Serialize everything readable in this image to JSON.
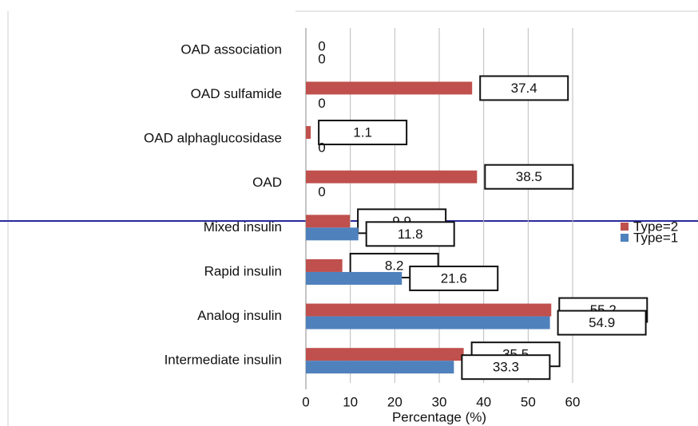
{
  "chart_data": {
    "type": "bar",
    "orientation": "horizontal",
    "xlabel": "Percentage (%)",
    "categories": [
      "OAD association",
      "OAD sulfamide",
      "OAD alphaglucosidase",
      "OAD",
      "Mixed insulin",
      "Rapid insulin",
      "Analog insulin",
      "Intermediate insulin"
    ],
    "series": [
      {
        "name": "Type=2",
        "color": "#c0504d",
        "values": [
          0,
          37.4,
          1.1,
          38.5,
          9.9,
          8.2,
          55.2,
          35.5
        ]
      },
      {
        "name": "Type=1",
        "color": "#4f81bd",
        "values": [
          0,
          0,
          0,
          0,
          11.8,
          21.6,
          54.9,
          33.3
        ]
      }
    ],
    "xlim": [
      0,
      60
    ],
    "xticks": [
      0,
      10,
      20,
      30,
      40,
      50,
      60
    ],
    "grid": true,
    "legend": "right"
  }
}
